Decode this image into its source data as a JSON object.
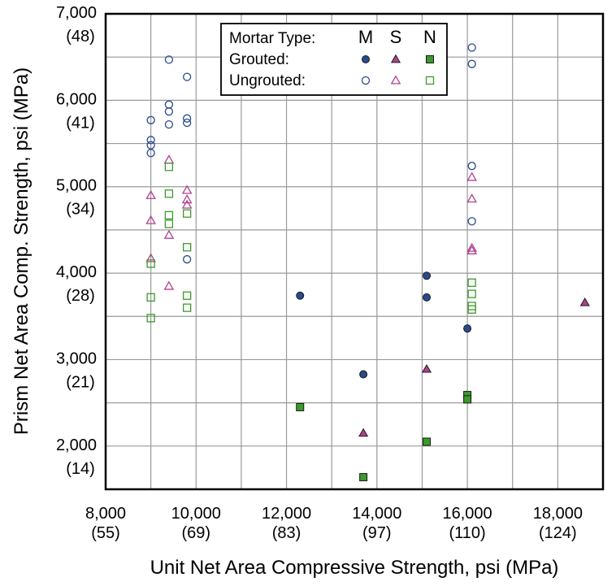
{
  "chart_data": {
    "type": "scatter",
    "title": "",
    "xlabel": "Unit Net Area Compressive Strength, psi (MPa)",
    "ylabel": "Prism Net Area Comp. Strength, psi (MPa)",
    "xlim": [
      8000,
      19000
    ],
    "ylim": [
      1500,
      7000
    ],
    "grid": true,
    "x_ticks": [
      {
        "value": 8000,
        "label": "8,000",
        "sublabel": "(55)"
      },
      {
        "value": 10000,
        "label": "10,000",
        "sublabel": "(69)"
      },
      {
        "value": 12000,
        "label": "12,000",
        "sublabel": "(83)"
      },
      {
        "value": 14000,
        "label": "14,000",
        "sublabel": "(97)"
      },
      {
        "value": 16000,
        "label": "16,000",
        "sublabel": "(110)"
      },
      {
        "value": 18000,
        "label": "18,000",
        "sublabel": "(124)"
      }
    ],
    "y_ticks": [
      {
        "value": 2000,
        "label": "2,000",
        "sublabel": "(14)"
      },
      {
        "value": 3000,
        "label": "3,000",
        "sublabel": "(21)"
      },
      {
        "value": 4000,
        "label": "4,000",
        "sublabel": "(28)"
      },
      {
        "value": 5000,
        "label": "5,000",
        "sublabel": "(34)"
      },
      {
        "value": 6000,
        "label": "6,000",
        "sublabel": "(41)"
      },
      {
        "value": 7000,
        "label": "7,000",
        "sublabel": "(48)"
      }
    ],
    "legend": {
      "position": "top-center",
      "header_label": "Mortar Type:",
      "columns": [
        "M",
        "S",
        "N"
      ],
      "rows": [
        "Grouted:",
        "Ungrouted:"
      ]
    },
    "colors": {
      "M": "#2a4a8e",
      "S": "#b0408f",
      "N": "#3a9a2a"
    },
    "series": [
      {
        "mortar": "M",
        "grouted": true,
        "marker": "circle",
        "filled": true,
        "points": [
          [
            12300,
            3740
          ],
          [
            13700,
            2830
          ],
          [
            15100,
            3970
          ],
          [
            15100,
            3720
          ],
          [
            16000,
            3360
          ]
        ]
      },
      {
        "mortar": "S",
        "grouted": true,
        "marker": "triangle",
        "filled": true,
        "points": [
          [
            13700,
            2150
          ],
          [
            15100,
            2890
          ],
          [
            18600,
            3660
          ]
        ]
      },
      {
        "mortar": "N",
        "grouted": true,
        "marker": "square",
        "filled": true,
        "points": [
          [
            12300,
            2450
          ],
          [
            13700,
            1640
          ],
          [
            15100,
            2050
          ],
          [
            16000,
            2590
          ],
          [
            16000,
            2540
          ]
        ]
      },
      {
        "mortar": "M",
        "grouted": false,
        "marker": "circle",
        "filled": false,
        "points": [
          [
            9000,
            5770
          ],
          [
            9000,
            5540
          ],
          [
            9000,
            5480
          ],
          [
            9000,
            5390
          ],
          [
            9400,
            6470
          ],
          [
            9400,
            5950
          ],
          [
            9400,
            5870
          ],
          [
            9400,
            5720
          ],
          [
            9800,
            6270
          ],
          [
            9800,
            5790
          ],
          [
            9800,
            5740
          ],
          [
            9800,
            4160
          ],
          [
            16100,
            6610
          ],
          [
            16100,
            6420
          ],
          [
            16100,
            5240
          ],
          [
            16100,
            4600
          ]
        ]
      },
      {
        "mortar": "S",
        "grouted": false,
        "marker": "triangle",
        "filled": false,
        "points": [
          [
            9000,
            4900
          ],
          [
            9000,
            4610
          ],
          [
            9000,
            4170
          ],
          [
            9400,
            5310
          ],
          [
            9400,
            4440
          ],
          [
            9400,
            3850
          ],
          [
            9800,
            4960
          ],
          [
            9800,
            4850
          ],
          [
            9800,
            4790
          ],
          [
            16100,
            5110
          ],
          [
            16100,
            4860
          ],
          [
            16100,
            4290
          ],
          [
            16100,
            4260
          ]
        ]
      },
      {
        "mortar": "N",
        "grouted": false,
        "marker": "square",
        "filled": false,
        "points": [
          [
            9000,
            4110
          ],
          [
            9000,
            3720
          ],
          [
            9000,
            3480
          ],
          [
            9400,
            5230
          ],
          [
            9400,
            4920
          ],
          [
            9400,
            4670
          ],
          [
            9400,
            4570
          ],
          [
            9800,
            4690
          ],
          [
            9800,
            4300
          ],
          [
            9800,
            3740
          ],
          [
            9800,
            3600
          ],
          [
            16100,
            3890
          ],
          [
            16100,
            3760
          ],
          [
            16100,
            3620
          ],
          [
            16100,
            3580
          ]
        ]
      }
    ]
  }
}
